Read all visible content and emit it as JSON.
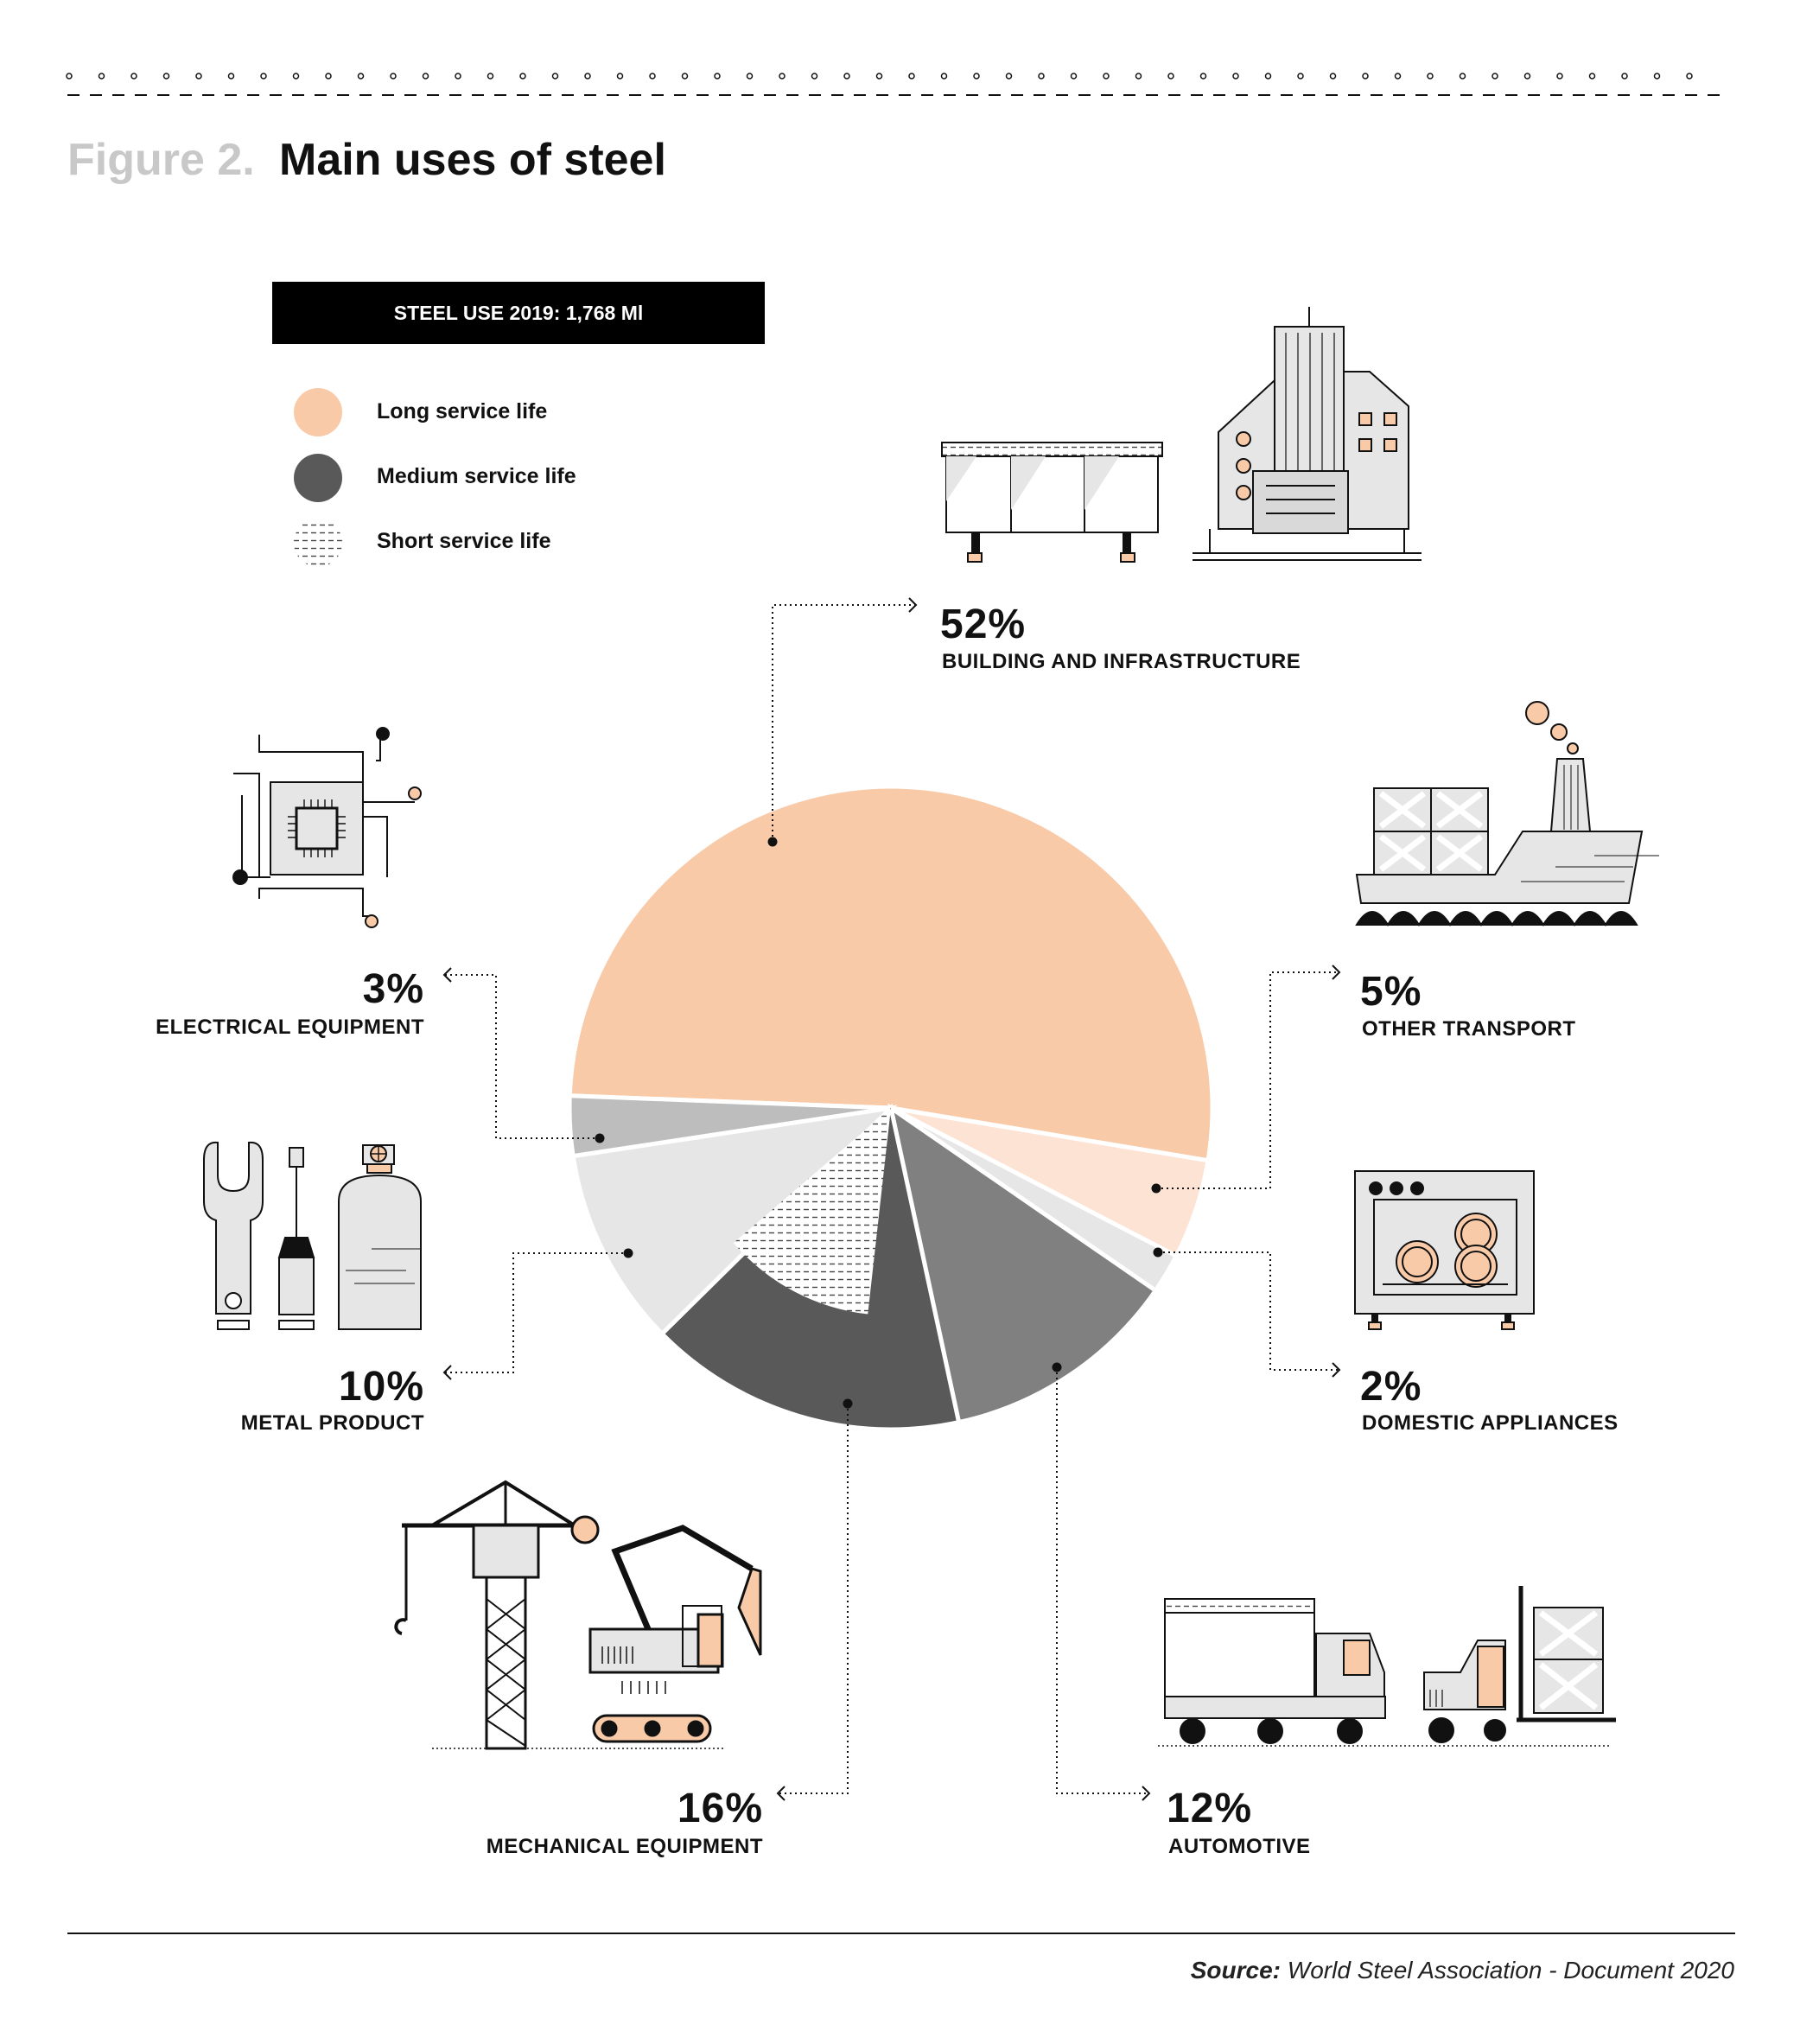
{
  "figure": {
    "number": "Figure 2.",
    "title": "Main uses of steel"
  },
  "banner": "STEEL USE 2019: 1,768 Ml",
  "legend": [
    {
      "label": "Long service life",
      "color": "#f8caa8"
    },
    {
      "label": "Medium service life",
      "color": "#595959"
    },
    {
      "label": "Short service life",
      "color": "#e6e6e6"
    }
  ],
  "source": {
    "label": "Source:",
    "text": "World Steel Association - Document 2020"
  },
  "chart_data": {
    "type": "pie",
    "categories": [
      "BUILDING AND INFRASTRUCTURE",
      "OTHER TRANSPORT",
      "DOMESTIC APPLIANCES",
      "AUTOMOTIVE",
      "MECHANICAL EQUIPMENT",
      "METAL PRODUCT",
      "ELECTRICAL EQUIPMENT"
    ],
    "values": [
      52,
      5,
      2,
      12,
      16,
      10,
      3
    ],
    "labels": [
      "52%",
      "5%",
      "2%",
      "12%",
      "16%",
      "10%",
      "3%"
    ],
    "slice_colors": [
      "#f8caa8",
      "#fde3d3",
      "#e6e6e6",
      "#808080",
      "#595959",
      "#e6e6e6",
      "#bdbdbd"
    ],
    "service_life": [
      "Long",
      "Long",
      "Short",
      "Medium",
      "Medium",
      "Short",
      "Medium"
    ]
  }
}
